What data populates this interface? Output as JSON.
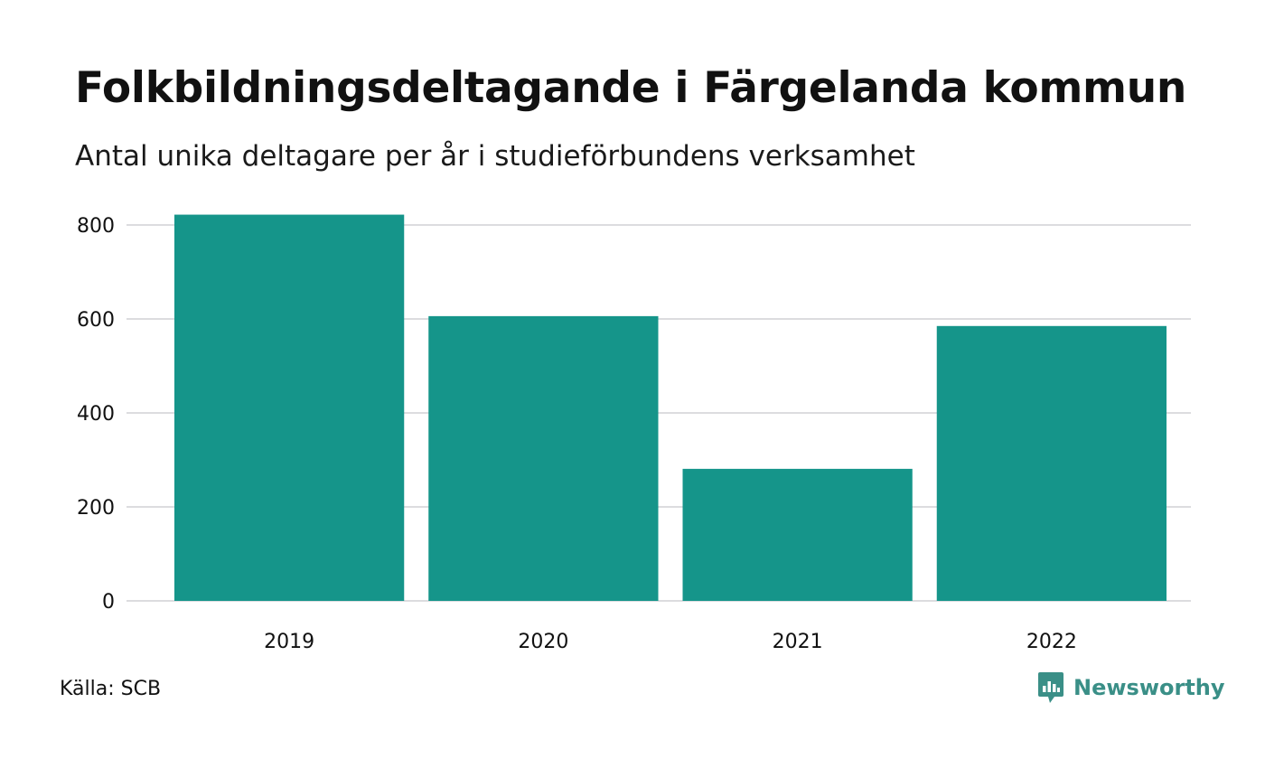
{
  "header": {
    "title": "Folkbildningsdeltagande i Färgelanda kommun",
    "subtitle": "Antal unika deltagare per år i studieförbundens verksamhet"
  },
  "footer": {
    "source": "Källa: SCB",
    "brand_name": "Newsworthy",
    "brand_color": "#3a8f87",
    "brand_icon": "bar-chart-speech-bubble-icon"
  },
  "colors": {
    "bar": "#15958a",
    "grid": "#dcdcdf",
    "text": "#111111"
  },
  "chart_data": {
    "type": "bar",
    "title": "Folkbildningsdeltagande i Färgelanda kommun",
    "subtitle": "Antal unika deltagare per år i studieförbundens verksamhet",
    "categories": [
      "2019",
      "2020",
      "2021",
      "2022"
    ],
    "values": [
      822,
      606,
      281,
      585
    ],
    "xlabel": "",
    "ylabel": "",
    "ylim": [
      0,
      800
    ],
    "yticks": [
      0,
      200,
      400,
      600,
      800
    ],
    "grid": true,
    "legend": "none"
  }
}
